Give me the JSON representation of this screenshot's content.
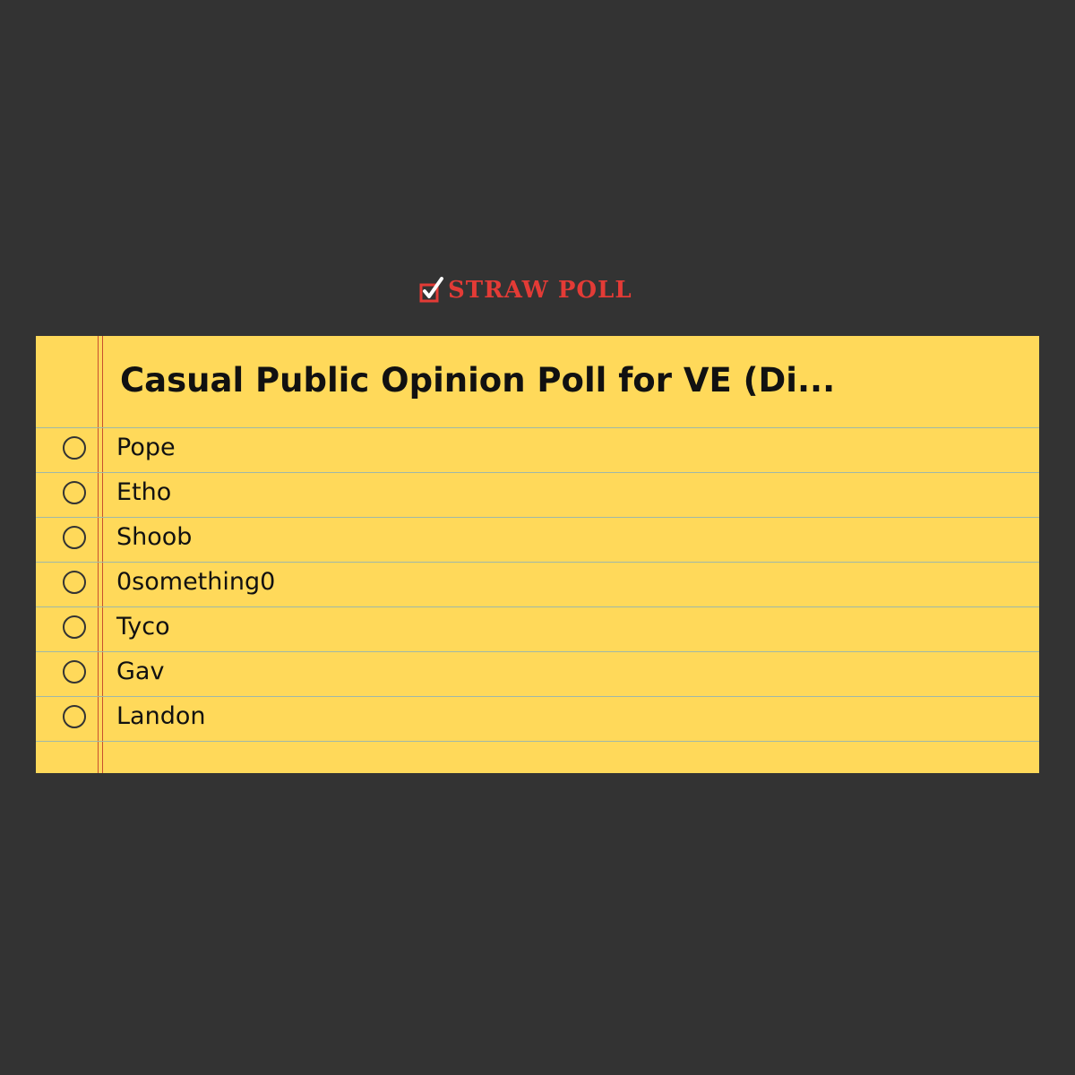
{
  "brand": {
    "name": "Straw Poll",
    "icon": "checkbox-check-icon",
    "color": "#e33b36"
  },
  "poll": {
    "title": "Casual Public Opinion Poll for VE (Di...",
    "options": [
      {
        "label": "Pope"
      },
      {
        "label": "Etho"
      },
      {
        "label": "Shoob"
      },
      {
        "label": "0something0"
      },
      {
        "label": "Tyco"
      },
      {
        "label": "Gav"
      },
      {
        "label": "Landon"
      }
    ]
  },
  "colors": {
    "background": "#333333",
    "paper": "#ffd95a",
    "rule": "#9fb8a8",
    "margin": "#c8502e"
  }
}
